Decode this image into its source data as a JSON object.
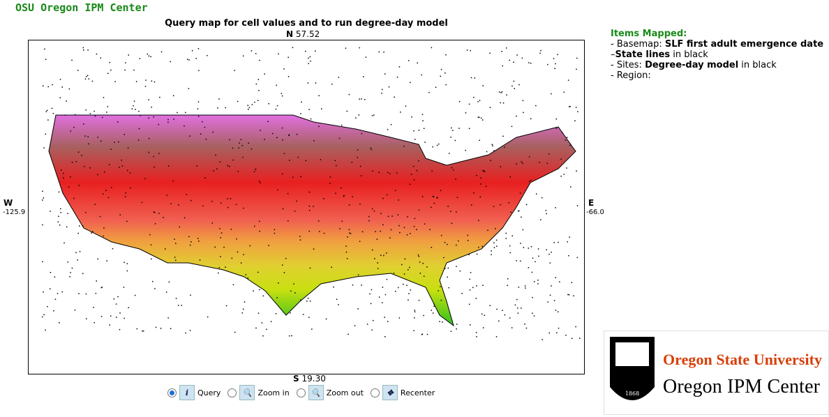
{
  "header": {
    "title": "OSU Oregon IPM Center"
  },
  "map": {
    "title": "Query map for cell values and to run degree-day model",
    "north": {
      "letter": "N",
      "value": "57.52"
    },
    "south": {
      "letter": "S",
      "value": "19.30"
    },
    "west": {
      "letter": "W",
      "value": "-125.9"
    },
    "east": {
      "letter": "E",
      "value": "-66.0"
    }
  },
  "controls": [
    {
      "icon": "i",
      "label": "Query"
    },
    {
      "label": "Zoom in"
    },
    {
      "label": "Zoom out"
    },
    {
      "label": "Recenter"
    }
  ],
  "legend": {
    "title": "Items Mapped:",
    "items": [
      {
        "prefix": "- Basemap: ",
        "bold": "SLF first adult emergence date"
      },
      {
        "prefix": "–",
        "bold": "State lines",
        "suffix": " in black"
      },
      {
        "prefix": "- Sites: ",
        "bold": "Degree-day model",
        "suffix": " in black"
      },
      {
        "prefix": "- Region:"
      }
    ]
  },
  "logo": {
    "university": "Oregon State University",
    "center": "Oregon IPM Center",
    "year": "1868"
  }
}
